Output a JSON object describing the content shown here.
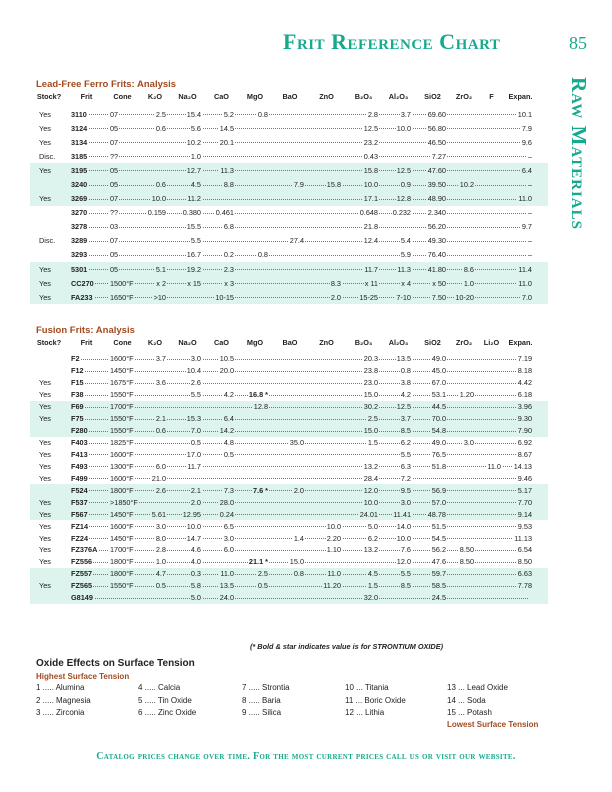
{
  "header": {
    "title": "Frit Reference Chart",
    "page_number": "85",
    "side_label": "Raw Materials"
  },
  "colors": {
    "accent": "#17a98e",
    "section": "#a34a1f",
    "highlight": "#dcf3ee"
  },
  "lead_free": {
    "title": "Lead-Free Ferro Frits: Analysis",
    "columns": [
      "Stock?",
      "Frit",
      "Cone",
      "K₂O",
      "Na₂O",
      "CaO",
      "MgO",
      "BaO",
      "ZnO",
      "B₂O₃",
      "Al₂O₃",
      "SiO2",
      "ZrO₂",
      "F",
      "Expan."
    ],
    "rows": [
      {
        "hl": false,
        "cells": [
          "Yes",
          "3110",
          "07",
          "2.5",
          "15.4",
          "5.2",
          "0.8",
          "",
          "",
          "2.8",
          "3.7",
          "69.60",
          "",
          "",
          "10.1"
        ]
      },
      {
        "hl": false,
        "cells": [
          "Yes",
          "3124",
          "05",
          "0.6",
          "5.6",
          "14.5",
          "",
          "",
          "",
          "12.5",
          "10.0",
          "56.80",
          "",
          "",
          "7.9"
        ]
      },
      {
        "hl": false,
        "cells": [
          "Yes",
          "3134",
          "07",
          "",
          "10.2",
          "20.1",
          "",
          "",
          "",
          "23.2",
          "",
          "46.50",
          "",
          "",
          "9.6"
        ]
      },
      {
        "hl": false,
        "cells": [
          "Disc.",
          "3185",
          "??",
          "",
          "1.0",
          "",
          "",
          "",
          "",
          "0.43",
          "",
          "7.27",
          "",
          "",
          "–"
        ]
      },
      {
        "hl": true,
        "cells": [
          "Yes",
          "3195",
          "05",
          "",
          "12.7",
          "11.3",
          "",
          "",
          "",
          "15.8",
          "12.5",
          "47.60",
          "",
          "",
          "6.4"
        ]
      },
      {
        "hl": true,
        "cells": [
          "",
          "3240",
          "05",
          "0.6",
          "4.5",
          "8.8",
          "",
          "7.9",
          "15.8",
          "10.0",
          "0.9",
          "39.50",
          "10.2",
          "",
          "–"
        ]
      },
      {
        "hl": true,
        "cells": [
          "Yes",
          "3269",
          "07",
          "10.0",
          "11.2",
          "",
          "",
          "",
          "",
          "17.1",
          "12.8",
          "48.90",
          "",
          "",
          "11.0"
        ]
      },
      {
        "hl": false,
        "cells": [
          "",
          "3270",
          "??",
          "0.159",
          "0.380",
          "0.461",
          "",
          "",
          "",
          "0.648",
          "0.232",
          "2.340",
          "",
          "",
          "–"
        ]
      },
      {
        "hl": false,
        "cells": [
          "",
          "3278",
          "03",
          "",
          "15.5",
          "6.8",
          "",
          "",
          "",
          "21.8",
          "",
          "56.20",
          "",
          "",
          "9.7"
        ]
      },
      {
        "hl": false,
        "cells": [
          "Disc.",
          "3289",
          "07",
          "",
          "5.5",
          "",
          "",
          "27.4",
          "",
          "12.4",
          "5.4",
          "49.30",
          "",
          "",
          "–"
        ]
      },
      {
        "hl": false,
        "cells": [
          "",
          "3293",
          "05",
          "",
          "16.7",
          "0.2",
          "0.8",
          "",
          "",
          "",
          "5.9",
          "76.40",
          "",
          "",
          "–"
        ]
      },
      {
        "hl": true,
        "cells": [
          "Yes",
          "5301",
          "05",
          "5.1",
          "19.2",
          "2.3",
          "",
          "",
          "",
          "11.7",
          "11.3",
          "41.80",
          "8.6",
          "",
          "11.4"
        ]
      },
      {
        "hl": true,
        "cells": [
          "Yes",
          "CC270",
          "1500°F",
          "x 2",
          "x 15",
          "x 3",
          "",
          "",
          "8.3",
          "x 11",
          "x 4",
          "x 50",
          "1.0",
          "",
          "11.0"
        ]
      },
      {
        "hl": true,
        "cells": [
          "Yes",
          "FA233",
          "1650°F",
          ">10",
          "",
          "10-15",
          "",
          "",
          "2.0",
          "15-25",
          "7-10",
          "7.50",
          "10-20",
          "",
          "7.0"
        ]
      }
    ]
  },
  "fusion": {
    "title": "Fusion Frits: Analysis",
    "columns": [
      "Stock?",
      "Frit",
      "Cone",
      "K₂O",
      "Na₂O",
      "CaO",
      "MgO",
      "BaO",
      "ZnO",
      "B₂O₃",
      "Al₂O₃",
      "SiO2",
      "ZrO₂",
      "Li₂O",
      "Expan."
    ],
    "rows": [
      {
        "hl": false,
        "cells": [
          "",
          "F2",
          "1600°F",
          "3.7",
          "3.0",
          "10.5",
          "",
          "",
          "",
          "20.3",
          "13.5",
          "49.0",
          "",
          "",
          "7.19"
        ]
      },
      {
        "hl": false,
        "cells": [
          "",
          "F12",
          "1450°F",
          "",
          "10.4",
          "20.0",
          "",
          "",
          "",
          "23.8",
          "0.8",
          "45.0",
          "",
          "",
          "8.18"
        ]
      },
      {
        "hl": false,
        "cells": [
          "Yes",
          "F15",
          "1675°F",
          "3.6",
          "2.6",
          "",
          "",
          "",
          "",
          "23.0",
          "3.8",
          "67.0",
          "",
          "",
          "4.42"
        ]
      },
      {
        "hl": false,
        "cells": [
          "Yes",
          "F38",
          "1550°F",
          "",
          "5.5",
          "4.2",
          "16.8 *",
          "",
          "",
          "15.0",
          "4.2",
          "53.1",
          "1.20",
          "",
          "6.18"
        ]
      },
      {
        "hl": true,
        "cells": [
          "Yes",
          "F69",
          "1700°F",
          "",
          "",
          "",
          "12.8",
          "",
          "",
          "30.2",
          "12.5",
          "44.5",
          "",
          "",
          "3.96"
        ]
      },
      {
        "hl": true,
        "cells": [
          "Yes",
          "F75",
          "1550°F",
          "2.1",
          "15.3",
          "6.4",
          "",
          "",
          "",
          "2.5",
          "3.7",
          "70.0",
          "",
          "",
          "9.30"
        ]
      },
      {
        "hl": true,
        "cells": [
          "",
          "F280",
          "1550°F",
          "0.6",
          "7.0",
          "14.2",
          "",
          "",
          "",
          "15.0",
          "8.5",
          "54.8",
          "",
          "",
          "7.90"
        ]
      },
      {
        "hl": false,
        "cells": [
          "Yes",
          "F403",
          "1825°F",
          "",
          "0.5",
          "4.8",
          "",
          "35.0",
          "",
          "1.5",
          "6.2",
          "49.0",
          "3.0",
          "",
          "6.92"
        ]
      },
      {
        "hl": false,
        "cells": [
          "Yes",
          "F413",
          "1600°F",
          "",
          "17.0",
          "0.5",
          "",
          "",
          "",
          "",
          "5.5",
          "76.5",
          "",
          "",
          "8.67"
        ]
      },
      {
        "hl": false,
        "cells": [
          "Yes",
          "F493",
          "1300°F",
          "6.0",
          "11.7",
          "",
          "",
          "",
          "",
          "13.2",
          "6.3",
          "51.8",
          "",
          "11.0",
          "14.13"
        ]
      },
      {
        "hl": false,
        "cells": [
          "Yes",
          "F499",
          "1600°F",
          "21.0",
          "",
          "",
          "",
          "",
          "",
          "28.4",
          "7.2",
          "",
          "",
          "",
          "9.46"
        ]
      },
      {
        "hl": true,
        "cells": [
          "",
          "F524",
          "1800°F",
          "2.6",
          "2.1",
          "7.3",
          "7.6 *",
          "2.0",
          "",
          "12.0",
          "9.5",
          "56.9",
          "",
          "",
          "5.17"
        ]
      },
      {
        "hl": true,
        "cells": [
          "Yes",
          "F537",
          ">1850°F",
          "",
          "2.0",
          "28.0",
          "",
          "",
          "",
          "10.0",
          "3.0",
          "57.0",
          "",
          "",
          "7.70"
        ]
      },
      {
        "hl": true,
        "cells": [
          "Yes",
          "F567",
          "1450°F",
          "5.61",
          "12.95",
          "0.24",
          "",
          "",
          "",
          "24.01",
          "11.41",
          "48.78",
          "",
          "",
          "9.14"
        ]
      },
      {
        "hl": false,
        "cells": [
          "Yes",
          "FZ14",
          "1600°F",
          "3.0",
          "10.0",
          "6.5",
          "",
          "",
          "10.0",
          "5.0",
          "14.0",
          "51.5",
          "",
          "",
          "9.53"
        ]
      },
      {
        "hl": false,
        "cells": [
          "Yes",
          "FZ24",
          "1450°F",
          "8.0",
          "14.7",
          "3.0",
          "",
          "1.4",
          "2.20",
          "6.2",
          "10.0",
          "54.5",
          "",
          "",
          "11.13"
        ]
      },
      {
        "hl": false,
        "cells": [
          "Yes",
          "FZ376A",
          "1700°F",
          "2.8",
          "4.6",
          "6.0",
          "",
          "",
          "1.10",
          "13.2",
          "7.6",
          "56.2",
          "8.50",
          "",
          "6.54"
        ]
      },
      {
        "hl": false,
        "cells": [
          "Yes",
          "FZ556",
          "1800°F",
          "1.0",
          "4.0",
          "",
          "21.1 *",
          "15.0",
          "",
          "",
          "12.0",
          "47.6",
          "8.50",
          "",
          "8.50"
        ]
      },
      {
        "hl": true,
        "cells": [
          "",
          "FZ557",
          "1800°F",
          "4.7",
          "0.3",
          "11.0",
          "2.5",
          "0.8",
          "11.0",
          "4.5",
          "5.5",
          "59.7",
          "",
          "",
          "6.63"
        ]
      },
      {
        "hl": true,
        "cells": [
          "Yes",
          "FZ565",
          "1550°F",
          "0.5",
          "5.8",
          "13.5",
          "0.5",
          "",
          "11.20",
          "1.5",
          "8.5",
          "58.5",
          "",
          "",
          "7.78"
        ]
      },
      {
        "hl": true,
        "cells": [
          "",
          "G8149",
          "",
          "",
          "5.0",
          "24.0",
          "",
          "",
          "",
          "32.0",
          "",
          "24.5",
          "",
          "",
          ""
        ]
      }
    ],
    "note": "(* Bold & star indicates value is for STRONTIUM OXIDE)"
  },
  "surface_tension": {
    "title": "Oxide Effects on Surface Tension",
    "highest_label": "Highest Surface Tension",
    "lowest_label": "Lowest Surface Tension",
    "items": [
      "1 ..... Alumina",
      "2 ..... Magnesia",
      "3 ..... Zirconia",
      "4 ..... Calcia",
      "5 ..... Tin Oxide",
      "6 ..... Zinc Oxide",
      "7 ..... Strontia",
      "8 ..... Baria",
      "9 ..... Silica",
      "10 ... Titania",
      "11 ... Boric Oxide",
      "12 ... Lithia",
      "13 ... Lead Oxide",
      "14 ... Soda",
      "15 ... Potash"
    ]
  },
  "footer": {
    "text": "Catalog prices change over time. For the most current prices call us or visit our website."
  }
}
